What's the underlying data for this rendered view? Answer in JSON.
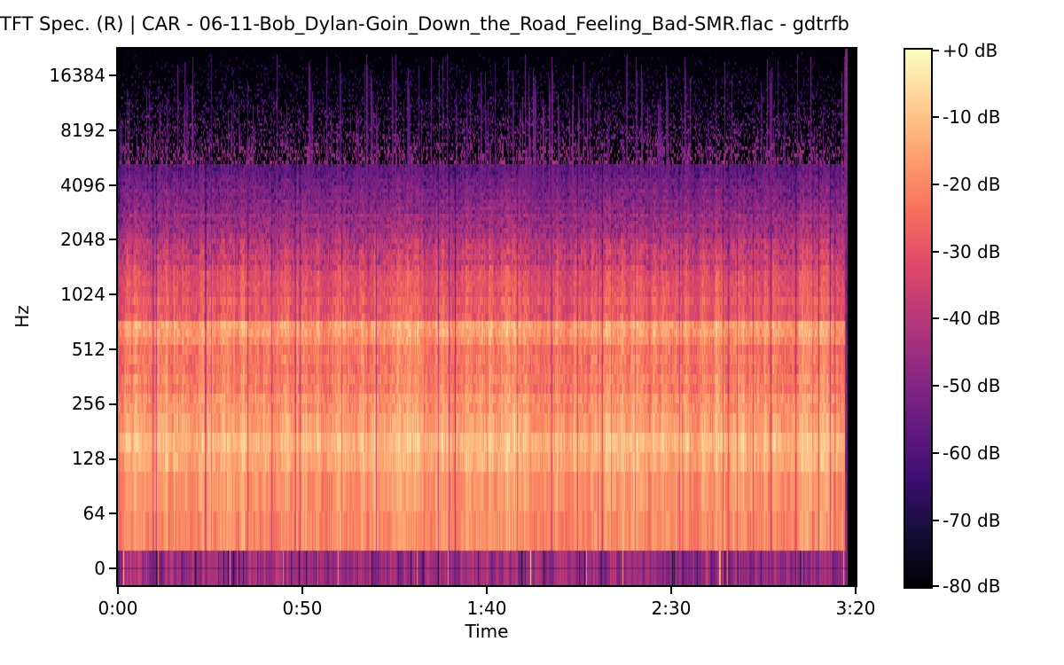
{
  "title": "TFT Spec. (R) | CAR - 06-11-Bob_Dylan-Goin_Down_the_Road_Feeling_Bad-SMR.flac - gdtrfb",
  "axes": {
    "ylabel": "Hz",
    "xlabel": "Time",
    "y_ticks": [
      "16384",
      "8192",
      "4096",
      "2048",
      "1024",
      "512",
      "256",
      "128",
      "64",
      "0"
    ],
    "x_ticks": [
      "0:00",
      "0:50",
      "1:40",
      "2:30",
      "3:20"
    ]
  },
  "colorbar": {
    "ticks": [
      "+0 dB",
      "-10 dB",
      "-20 dB",
      "-30 dB",
      "-40 dB",
      "-50 dB",
      "-60 dB",
      "-70 dB",
      "-80 dB"
    ]
  },
  "chart_data": {
    "type": "heatmap",
    "subtype": "audio-spectrogram-log-frequency",
    "title": "TFT Spec. (R) | CAR - 06-11-Bob_Dylan-Goin_Down_the_Road_Feeling_Bad-SMR.flac - gdtrfb",
    "xlabel": "Time",
    "ylabel": "Hz",
    "x_tick_labels": [
      "0:00",
      "0:50",
      "1:40",
      "2:30",
      "3:20"
    ],
    "y_tick_labels_hz": [
      16384,
      8192,
      4096,
      2048,
      1024,
      512,
      256,
      128,
      64,
      0
    ],
    "y_scale": "log2_octaves_evenly_spaced",
    "time_range": [
      "0:00",
      "3:20"
    ],
    "colorbar_ticks_db": [
      0,
      -10,
      -20,
      -30,
      -40,
      -50,
      -60,
      -70,
      -80
    ],
    "db_range": [
      -80,
      0
    ],
    "colormap": "magma",
    "colormap_stops": [
      "#000004",
      "#140e36",
      "#3b0f70",
      "#641a80",
      "#8c2981",
      "#b73779",
      "#de4968",
      "#f7705c",
      "#fe9f6d",
      "#fecf92",
      "#fcfdbf"
    ],
    "freq_band_levels_db": [
      [
        "0-25 Hz",
        -47
      ],
      [
        "25-64 Hz",
        -19
      ],
      [
        "64-128 Hz",
        -18
      ],
      [
        "128-256 Hz",
        -13
      ],
      [
        "256-512 Hz",
        -16
      ],
      [
        "512-600 Hz",
        -16
      ],
      [
        "600-1024 Hz",
        -22
      ],
      [
        "1024-2048 Hz",
        -27
      ],
      [
        "2048-4096 Hz",
        -33
      ],
      [
        "4096-8192 Hz",
        -48
      ],
      [
        "8192-16384 Hz",
        -65
      ],
      [
        "16384+ Hz",
        -78
      ]
    ],
    "render": {
      "profile_y_db": [
        [
          0,
          -80
        ],
        [
          15,
          -78
        ],
        [
          45,
          -73
        ],
        [
          70,
          -68
        ],
        [
          95,
          -63
        ],
        [
          120,
          -58
        ],
        [
          145,
          -53
        ],
        [
          170,
          -48
        ],
        [
          195,
          -43
        ],
        [
          215,
          -39
        ],
        [
          240,
          -34
        ],
        [
          262,
          -31
        ],
        [
          290,
          -28.5
        ],
        [
          306,
          -27
        ],
        [
          311,
          -16.5
        ],
        [
          327,
          -16.5
        ],
        [
          333,
          -25
        ],
        [
          355,
          -23
        ],
        [
          378,
          -21
        ],
        [
          400,
          -18.5
        ],
        [
          418,
          -15
        ],
        [
          438,
          -13.5
        ],
        [
          462,
          -12.5
        ],
        [
          478,
          -17.5
        ],
        [
          500,
          -19
        ],
        [
          522,
          -17.5
        ],
        [
          545,
          -19.5
        ],
        [
          564,
          -20
        ],
        [
          567,
          -46
        ],
        [
          590,
          -47
        ],
        [
          607,
          -49
        ]
      ],
      "bottom_band_start_y": 566,
      "bottom_band_base_db": -46,
      "data_end_col": 823,
      "purple_tail_col": 820,
      "streak_count": 170,
      "col_gap_probability": 0.035,
      "col_bright_probability": 0.05,
      "bottom_gap_probability": 0.055,
      "bottom_bright_probability": 0.011
    }
  }
}
